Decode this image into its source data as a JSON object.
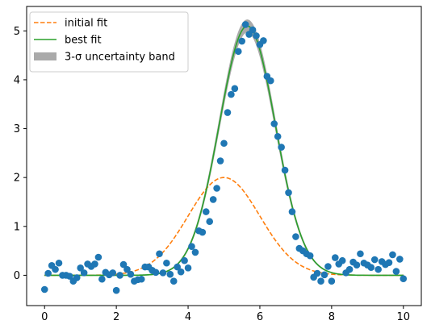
{
  "chart_data": {
    "type": "scatter",
    "title": "",
    "xlabel": "",
    "ylabel": "",
    "xlim": [
      -0.5,
      10.5
    ],
    "ylim": [
      -0.62,
      5.5
    ],
    "xticks": [
      0,
      2,
      4,
      6,
      8,
      10
    ],
    "yticks": [
      0,
      1,
      2,
      3,
      4,
      5
    ],
    "grid": false,
    "legend_position": "upper left",
    "colors": {
      "data": "#1f77b4",
      "initial_fit": "#ff7f0e",
      "best_fit": "#2ca02c",
      "band": "#aaaaaa"
    },
    "legend": [
      {
        "label": "initial fit",
        "style": "dashed-line",
        "color": "#ff7f0e"
      },
      {
        "label": "best fit",
        "style": "line",
        "color": "#2ca02c"
      },
      {
        "label": "3-σ uncertainty band",
        "style": "patch",
        "color": "#aaaaaa"
      }
    ],
    "initial_fit_params": {
      "amplitude": 2.0,
      "center": 5.0,
      "sigma": 1.0
    },
    "best_fit_params": {
      "amplitude": 5.1,
      "center": 5.65,
      "sigma": 0.78
    },
    "band_halfwidth_max": 0.12,
    "points": [
      [
        0.0,
        -0.29
      ],
      [
        0.1,
        0.04
      ],
      [
        0.2,
        0.2
      ],
      [
        0.3,
        0.12
      ],
      [
        0.4,
        0.25
      ],
      [
        0.5,
        0.0
      ],
      [
        0.6,
        0.0
      ],
      [
        0.7,
        -0.02
      ],
      [
        0.8,
        -0.12
      ],
      [
        0.9,
        -0.05
      ],
      [
        1.0,
        0.15
      ],
      [
        1.1,
        0.05
      ],
      [
        1.2,
        0.23
      ],
      [
        1.3,
        0.18
      ],
      [
        1.4,
        0.23
      ],
      [
        1.5,
        0.37
      ],
      [
        1.6,
        -0.08
      ],
      [
        1.7,
        0.06
      ],
      [
        1.8,
        0.01
      ],
      [
        1.9,
        0.05
      ],
      [
        2.0,
        -0.31
      ],
      [
        2.1,
        0.0
      ],
      [
        2.2,
        0.22
      ],
      [
        2.3,
        0.12
      ],
      [
        2.4,
        0.02
      ],
      [
        2.5,
        -0.12
      ],
      [
        2.6,
        -0.09
      ],
      [
        2.7,
        -0.08
      ],
      [
        2.8,
        0.17
      ],
      [
        2.9,
        0.17
      ],
      [
        3.0,
        0.1
      ],
      [
        3.1,
        0.06
      ],
      [
        3.2,
        0.44
      ],
      [
        3.3,
        0.05
      ],
      [
        3.4,
        0.25
      ],
      [
        3.5,
        0.02
      ],
      [
        3.6,
        -0.12
      ],
      [
        3.7,
        0.17
      ],
      [
        3.8,
        0.07
      ],
      [
        3.9,
        0.3
      ],
      [
        4.0,
        0.15
      ],
      [
        4.1,
        0.59
      ],
      [
        4.2,
        0.47
      ],
      [
        4.3,
        0.91
      ],
      [
        4.4,
        0.88
      ],
      [
        4.5,
        1.3
      ],
      [
        4.6,
        1.1
      ],
      [
        4.7,
        1.55
      ],
      [
        4.8,
        1.78
      ],
      [
        4.9,
        2.34
      ],
      [
        5.0,
        2.7
      ],
      [
        5.1,
        3.33
      ],
      [
        5.2,
        3.7
      ],
      [
        5.3,
        3.82
      ],
      [
        5.4,
        4.58
      ],
      [
        5.5,
        4.79
      ],
      [
        5.6,
        5.13
      ],
      [
        5.7,
        4.93
      ],
      [
        5.8,
        5.02
      ],
      [
        5.9,
        4.9
      ],
      [
        6.0,
        4.72
      ],
      [
        6.1,
        4.8
      ],
      [
        6.2,
        4.07
      ],
      [
        6.3,
        3.98
      ],
      [
        6.4,
        3.1
      ],
      [
        6.5,
        2.84
      ],
      [
        6.6,
        2.62
      ],
      [
        6.7,
        2.15
      ],
      [
        6.8,
        1.69
      ],
      [
        6.9,
        1.3
      ],
      [
        7.0,
        0.79
      ],
      [
        7.1,
        0.55
      ],
      [
        7.2,
        0.5
      ],
      [
        7.3,
        0.44
      ],
      [
        7.4,
        0.4
      ],
      [
        7.5,
        -0.04
      ],
      [
        7.6,
        0.04
      ],
      [
        7.7,
        -0.12
      ],
      [
        7.8,
        0.01
      ],
      [
        7.9,
        0.18
      ],
      [
        8.0,
        -0.12
      ],
      [
        8.1,
        0.36
      ],
      [
        8.2,
        0.23
      ],
      [
        8.3,
        0.3
      ],
      [
        8.4,
        0.05
      ],
      [
        8.5,
        0.12
      ],
      [
        8.6,
        0.27
      ],
      [
        8.7,
        0.21
      ],
      [
        8.8,
        0.44
      ],
      [
        8.9,
        0.25
      ],
      [
        9.0,
        0.21
      ],
      [
        9.1,
        0.16
      ],
      [
        9.2,
        0.32
      ],
      [
        9.3,
        0.12
      ],
      [
        9.4,
        0.28
      ],
      [
        9.5,
        0.22
      ],
      [
        9.6,
        0.26
      ],
      [
        9.7,
        0.42
      ],
      [
        9.8,
        0.08
      ],
      [
        9.9,
        0.33
      ],
      [
        10.0,
        -0.07
      ]
    ]
  }
}
